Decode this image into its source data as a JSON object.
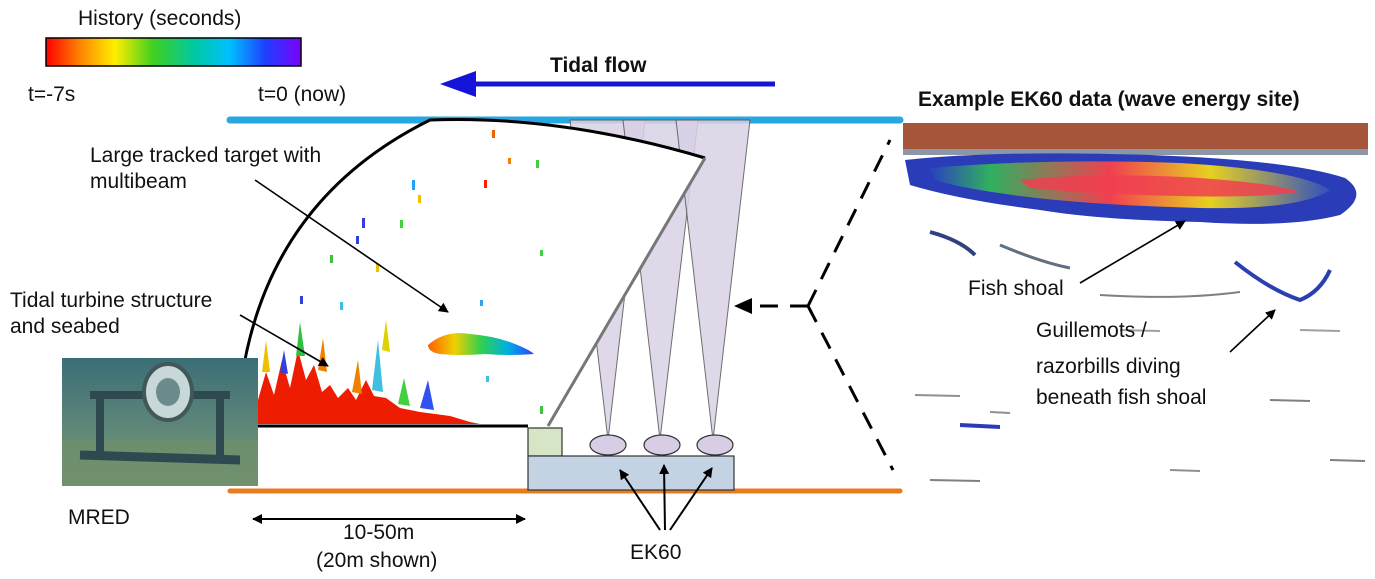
{
  "legend": {
    "title": "History (seconds)",
    "left_label": "t=-7s",
    "right_label": "t=0 (now)"
  },
  "labels": {
    "tidal_flow": "Tidal flow",
    "example_title": "Example EK60 data (wave energy site)",
    "large_target_line1": "Large tracked target with",
    "large_target_line2": "multibeam",
    "turbine_line1": "Tidal turbine structure",
    "turbine_line2": "and seabed",
    "mred": "MRED",
    "range_line1": "10-50m",
    "range_line2": "(20m shown)",
    "ek60": "EK60",
    "fish_shoal": "Fish shoal",
    "birds_line1": "Guillemots /",
    "birds_line2": "razorbills diving",
    "birds_line3": "beneath fish shoal"
  },
  "colors": {
    "surface_line": "#29a7e0",
    "seabed_line": "#e87c1c",
    "flow_arrow": "#1414d8",
    "beam_fill": "#d9d2e6",
    "transducer_fill": "#d7cde4",
    "platform_fill": "#c3d3e4",
    "multibeam_unit_fill": "#d6e5c6"
  },
  "icons": {
    "colorbar": "history-colorbar",
    "turbine_photo": "tidal-turbine-photo",
    "echogram": "ek60-echogram"
  }
}
